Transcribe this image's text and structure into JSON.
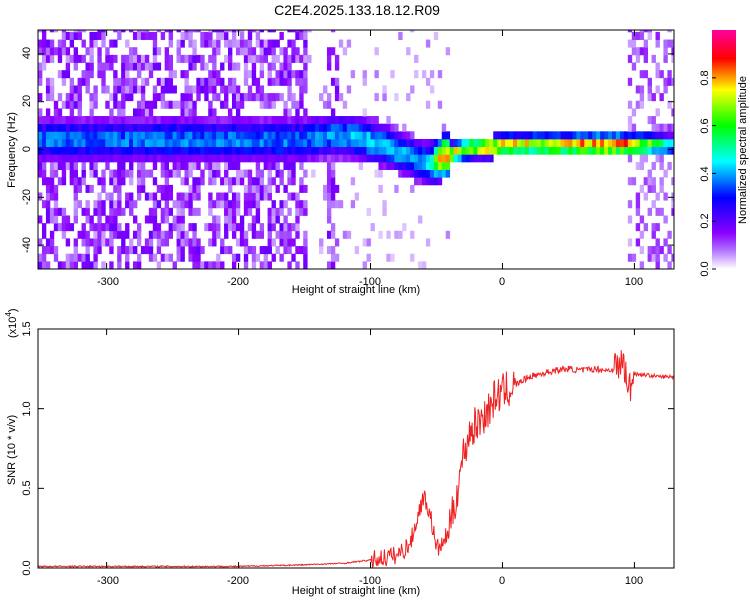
{
  "title": "C2E4.2025.133.18.12.R09",
  "chart_data": [
    {
      "type": "heatmap",
      "xlabel": "Height of straight line (km)",
      "ylabel": "Frequency (Hz)",
      "xlim": [
        -352,
        130
      ],
      "ylim": [
        -50,
        50
      ],
      "xticks": [
        -300,
        -200,
        -100,
        0,
        100
      ],
      "yticks": [
        -40,
        -20,
        0,
        20,
        40
      ],
      "colorbar": {
        "label": "Normalized spectral amplitude",
        "range": [
          0,
          1
        ],
        "ticks": [
          0.0,
          0.2,
          0.4,
          0.6,
          0.8
        ],
        "colors": [
          "#ffffff",
          "#8a00ff",
          "#0000ff",
          "#00ffff",
          "#00ff00",
          "#ffff00",
          "#ff0000",
          "#ff00a0"
        ]
      },
      "ridge": {
        "x": [
          -150,
          -130,
          -110,
          -90,
          -70,
          -55,
          -45,
          -30,
          -20,
          -10,
          0,
          20,
          50,
          80,
          100,
          130
        ],
        "freq": [
          4,
          6,
          5,
          2,
          -3,
          -6,
          -3,
          0,
          1,
          1,
          2,
          2,
          2,
          2,
          2,
          2
        ],
        "peak_amplitude": [
          0.4,
          0.42,
          0.45,
          0.45,
          0.42,
          0.45,
          0.9,
          0.7,
          0.75,
          0.85,
          0.8,
          0.8,
          0.85,
          0.95,
          0.85,
          0.45
        ]
      }
    },
    {
      "type": "line",
      "xlabel": "Height of straight line (km)",
      "ylabel": "SNR (10 * v/v)",
      "y_multiplier": "(x10",
      "y_multiplier_exp": "4",
      "y_multiplier_close": ")",
      "xlim": [
        -352,
        130
      ],
      "ylim": [
        0,
        1.5
      ],
      "xticks": [
        -300,
        -200,
        -100,
        0,
        100
      ],
      "yticks": [
        0.0,
        0.5,
        1.0,
        1.5
      ],
      "color": "#ee2222",
      "series": [
        {
          "x": [
            -352,
            -300,
            -200,
            -150,
            -120,
            -100,
            -80,
            -70,
            -60,
            -55,
            -50,
            -45,
            -40,
            -35,
            -30,
            -25,
            -20,
            -15,
            -10,
            -5,
            0,
            10,
            20,
            30,
            40,
            50,
            60,
            70,
            80,
            88,
            92,
            95,
            100,
            110,
            120,
            130
          ],
          "y": [
            0.01,
            0.01,
            0.01,
            0.02,
            0.03,
            0.05,
            0.08,
            0.15,
            0.45,
            0.35,
            0.12,
            0.15,
            0.25,
            0.45,
            0.7,
            0.85,
            0.9,
            0.95,
            1.0,
            1.08,
            1.1,
            1.15,
            1.2,
            1.22,
            1.24,
            1.25,
            1.24,
            1.25,
            1.24,
            1.26,
            1.3,
            1.1,
            1.22,
            1.21,
            1.2,
            1.2
          ]
        }
      ]
    }
  ],
  "tick_text": {
    "top_x": [
      "-300",
      "-200",
      "-100",
      "0",
      "100"
    ],
    "top_y": [
      "-40",
      "-20",
      "0",
      "20",
      "40"
    ],
    "bottom_x": [
      "-300",
      "-200",
      "-100",
      "0",
      "100"
    ],
    "bottom_y": [
      "0.0",
      "0.5",
      "1.0",
      "1.5"
    ],
    "cbar": [
      "0.0",
      "0.2",
      "0.4",
      "0.6",
      "0.8"
    ]
  }
}
